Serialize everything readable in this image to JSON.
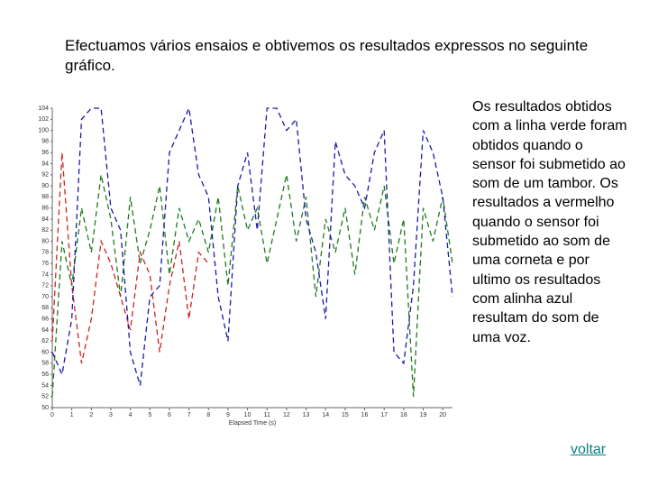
{
  "title": "Efectuamos vários ensaios e obtivemos os resultados expressos no seguinte gráfico.",
  "description": "Os resultados obtidos com a linha verde foram obtidos quando o sensor foi submetido ao som de um tambor. Os resultados a vermelho quando o sensor foi submetido ao som de uma corneta e por ultimo os resultados com alinha azul resultam do som de uma voz.",
  "link": "voltar",
  "chart_data": {
    "type": "line",
    "xlabel": "Elapsed Time (s)",
    "x": [
      0,
      0.5,
      1,
      1.5,
      2,
      2.5,
      3,
      3.5,
      4,
      4.5,
      5,
      5.5,
      6,
      6.5,
      7,
      7.5,
      8,
      8.5,
      9,
      9.5,
      10,
      10.5,
      11,
      11.5,
      12,
      12.5,
      13,
      13.5,
      14,
      14.5,
      15,
      15.5,
      16,
      16.5,
      17,
      17.5,
      18,
      18.5,
      19,
      19.5,
      20,
      20.5
    ],
    "xlim": [
      0,
      20.5
    ],
    "xticks": [
      0,
      1,
      2,
      3,
      4,
      5,
      6,
      7,
      8,
      9,
      10,
      11,
      12,
      13,
      14,
      15,
      16,
      17,
      18,
      19,
      20
    ],
    "ylim": [
      50,
      104
    ],
    "yticks": [
      50,
      52,
      54,
      56,
      58,
      60,
      62,
      64,
      66,
      68,
      70,
      72,
      74,
      76,
      78,
      80,
      82,
      84,
      86,
      88,
      90,
      92,
      94,
      96,
      98,
      100,
      102,
      104
    ],
    "series": [
      {
        "name": "tambor",
        "color": "#1f7a1f",
        "values": [
          52,
          80,
          72,
          86,
          78,
          92,
          84,
          70,
          88,
          76,
          82,
          90,
          74,
          86,
          80,
          84,
          78,
          88,
          72,
          90,
          82,
          86,
          76,
          84,
          92,
          80,
          88,
          70,
          84,
          78,
          86,
          74,
          88,
          82,
          90,
          76,
          84,
          52,
          86,
          80,
          88,
          76
        ]
      },
      {
        "name": "corneta",
        "color": "#cc2222",
        "values": [
          62,
          96,
          72,
          58,
          66,
          80,
          76,
          70,
          64,
          78,
          74,
          60,
          72,
          80,
          66,
          78,
          76,
          null,
          null,
          null,
          null,
          null,
          null,
          null,
          null,
          null,
          null,
          null,
          null,
          null,
          null,
          null,
          null,
          null,
          null,
          null,
          null,
          null,
          null,
          null,
          null,
          null
        ]
      },
      {
        "name": "voz",
        "color": "#1a1aa8",
        "values": [
          60,
          56,
          66,
          102,
          104,
          104,
          86,
          82,
          60,
          54,
          70,
          72,
          96,
          100,
          104,
          92,
          88,
          70,
          62,
          90,
          96,
          82,
          104,
          104,
          100,
          102,
          84,
          78,
          66,
          98,
          92,
          90,
          86,
          96,
          100,
          60,
          58,
          72,
          100,
          96,
          88,
          70
        ]
      }
    ]
  }
}
